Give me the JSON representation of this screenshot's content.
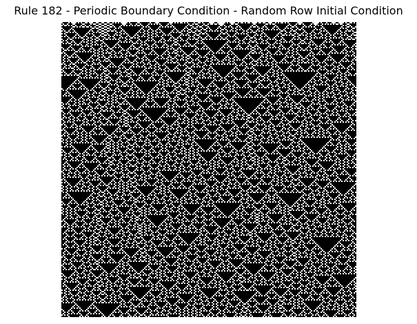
{
  "figure": {
    "title": "Rule 182 - Periodic Boundary Condition - Random Row Initial Condition"
  },
  "automaton": {
    "rule": 182,
    "boundary": "periodic",
    "initial_condition": "random row",
    "cell_on_color": "#000000",
    "cell_off_color": "#ffffff"
  }
}
